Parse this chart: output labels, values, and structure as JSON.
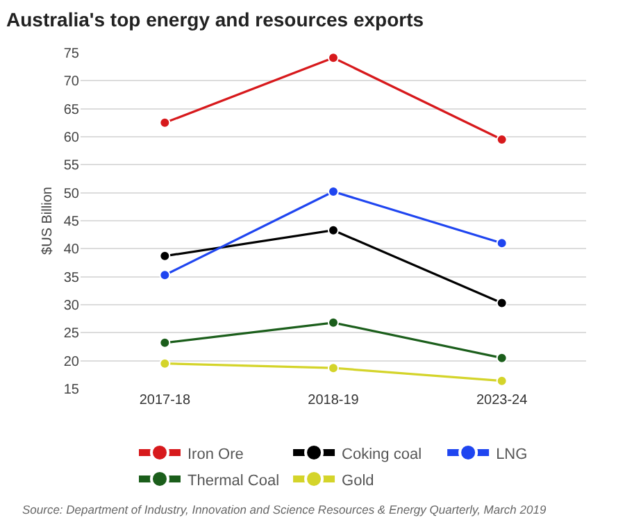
{
  "chart_data": {
    "type": "line",
    "title": "Australia's top energy and resources exports",
    "ylabel": "$US Billion",
    "categories": [
      "2017-18",
      "2018-19",
      "2023-24"
    ],
    "series": [
      {
        "name": "Iron Ore",
        "color": "#d7191c",
        "values": [
          62.5,
          74.1,
          59.5
        ]
      },
      {
        "name": "Coking coal",
        "color": "#000000",
        "values": [
          38.7,
          43.3,
          30.3
        ]
      },
      {
        "name": "LNG",
        "color": "#1f45f0",
        "values": [
          35.3,
          50.2,
          41.0
        ]
      },
      {
        "name": "Thermal Coal",
        "color": "#1b5e1b",
        "values": [
          23.2,
          26.8,
          20.5
        ]
      },
      {
        "name": "Gold",
        "color": "#d4d42a",
        "values": [
          19.5,
          18.7,
          16.4
        ]
      }
    ],
    "ylim": [
      15,
      75
    ],
    "yticks": [
      15,
      20,
      25,
      30,
      35,
      40,
      45,
      50,
      55,
      60,
      65,
      70,
      75
    ],
    "grid": "y",
    "legend": "bottom",
    "marker": "circle",
    "line_style": "solid",
    "annotations": [
      "Source: Department of Industry, Innovation and Science Resources & Energy Quarterly, March 2019"
    ]
  }
}
